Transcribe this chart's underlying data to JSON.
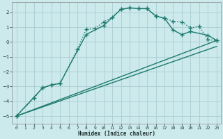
{
  "xlabel": "Humidex (Indice chaleur)",
  "bg_color": "#cce9ec",
  "grid_color": "#aacdd4",
  "line_color": "#1d7a6e",
  "xlim": [
    -0.5,
    23.5
  ],
  "ylim": [
    -5.5,
    2.7
  ],
  "yticks": [
    -5,
    -4,
    -3,
    -2,
    -1,
    0,
    1,
    2
  ],
  "xticks": [
    0,
    1,
    2,
    3,
    4,
    5,
    6,
    7,
    8,
    9,
    10,
    11,
    12,
    13,
    14,
    15,
    16,
    17,
    18,
    19,
    20,
    21,
    22,
    23
  ],
  "series": [
    {
      "x": [
        0,
        2,
        3,
        4,
        5,
        7,
        8,
        9,
        10,
        11,
        12,
        13,
        14,
        15,
        16,
        17,
        18,
        19,
        20,
        21,
        22,
        23
      ],
      "y": [
        -5.0,
        -3.8,
        -3.1,
        -2.9,
        -2.8,
        -0.5,
        0.85,
        0.9,
        1.35,
        1.65,
        2.2,
        2.3,
        2.25,
        2.25,
        1.75,
        1.6,
        1.4,
        1.35,
        0.95,
        1.05,
        0.15,
        0.1
      ],
      "marker": "+",
      "markersize": 4,
      "linestyle": ":",
      "linewidth": 1.0
    },
    {
      "x": [
        0,
        3,
        4,
        5,
        8,
        10,
        12,
        13,
        14,
        15,
        16,
        17,
        18,
        19,
        20,
        22,
        23
      ],
      "y": [
        -5.0,
        -3.1,
        -2.9,
        -2.8,
        0.5,
        1.1,
        2.2,
        2.3,
        2.25,
        2.25,
        1.75,
        1.6,
        0.8,
        0.5,
        0.7,
        0.45,
        0.1
      ],
      "marker": "+",
      "markersize": 4,
      "linestyle": "-",
      "linewidth": 1.0
    },
    {
      "x": [
        0,
        23
      ],
      "y": [
        -5.0,
        0.1
      ],
      "marker": null,
      "markersize": 0,
      "linestyle": "-",
      "linewidth": 1.0
    },
    {
      "x": [
        0,
        23
      ],
      "y": [
        -5.0,
        -0.3
      ],
      "marker": null,
      "markersize": 0,
      "linestyle": "-",
      "linewidth": 1.0
    }
  ]
}
